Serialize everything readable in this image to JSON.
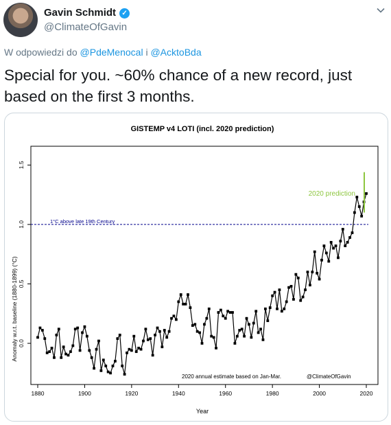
{
  "tweet": {
    "author_name": "Gavin Schmidt",
    "handle": "@ClimateOfGavin",
    "reply_prefix": "W odpowiedzi do",
    "reply_user1": "@PdeMenocal",
    "reply_joiner": "i",
    "reply_user2": "@AcktoBda",
    "text": "Special for you. ~60% chance of a new record, just based on the first 3 months.",
    "icons": [
      "avatar",
      "verified-badge-icon",
      "chevron-down-icon"
    ],
    "colors": {
      "link": "#1b95e0",
      "verified": "#1da1f2",
      "muted": "#657786"
    }
  },
  "chart_data": {
    "type": "line",
    "title": "GISTEMP v4 LOTI (incl. 2020 prediction)",
    "xlabel": "Year",
    "ylabel": "Anomaly w.r.t. baseline (1880-1899) (°C)",
    "xlim": [
      1880,
      2020
    ],
    "ylim": [
      -0.3,
      1.6
    ],
    "xticks": [
      "1880",
      "1900",
      "1920",
      "1940",
      "1960",
      "1980",
      "2000",
      "2020"
    ],
    "yticks": [
      "0.0",
      "0.5",
      "1.0",
      "1.5"
    ],
    "reference_line": {
      "y": 1.0,
      "label": "1°C above late 19th Century",
      "color": "#00008b"
    },
    "prediction": {
      "year": 2020,
      "value": 1.26,
      "low": 1.1,
      "high": 1.44,
      "label": "2020 prediction",
      "color": "#8dc63f"
    },
    "annotation_left": "2020 annual estimate based on Jan-Mar.",
    "annotation_right": "@ClimateOfGavin",
    "series": [
      {
        "x": [
          1880,
          1881,
          1882,
          1883,
          1884,
          1885,
          1886,
          1887,
          1888,
          1889,
          1890,
          1891,
          1892,
          1893,
          1894,
          1895,
          1896,
          1897,
          1898,
          1899,
          1900,
          1901,
          1902,
          1903,
          1904,
          1905,
          1906,
          1907,
          1908,
          1909,
          1910,
          1911,
          1912,
          1913,
          1914,
          1915,
          1916,
          1917,
          1918,
          1919,
          1920,
          1921,
          1922,
          1923,
          1924,
          1925,
          1926,
          1927,
          1928,
          1929,
          1930,
          1931,
          1932,
          1933,
          1934,
          1935,
          1936,
          1937,
          1938,
          1939,
          1940,
          1941,
          1942,
          1943,
          1944,
          1945,
          1946,
          1947,
          1948,
          1949,
          1950,
          1951,
          1952,
          1953,
          1954,
          1955,
          1956,
          1957,
          1958,
          1959,
          1960,
          1961,
          1962,
          1963,
          1964,
          1965,
          1966,
          1967,
          1968,
          1969,
          1970,
          1971,
          1972,
          1973,
          1974,
          1975,
          1976,
          1977,
          1978,
          1979,
          1980,
          1981,
          1982,
          1983,
          1984,
          1985,
          1986,
          1987,
          1988,
          1989,
          1990,
          1991,
          1992,
          1993,
          1994,
          1995,
          1996,
          1997,
          1998,
          1999,
          2000,
          2001,
          2002,
          2003,
          2004,
          2005,
          2006,
          2007,
          2008,
          2009,
          2010,
          2011,
          2012,
          2013,
          2014,
          2015,
          2016,
          2017,
          2018,
          2019
        ],
        "y": [
          0.05,
          0.13,
          0.11,
          0.04,
          -0.08,
          -0.07,
          -0.04,
          -0.12,
          0.07,
          0.12,
          -0.12,
          -0.03,
          -0.09,
          -0.1,
          -0.07,
          -0.02,
          0.12,
          0.13,
          -0.06,
          0.09,
          0.14,
          0.06,
          -0.06,
          -0.12,
          -0.21,
          -0.05,
          0.02,
          -0.23,
          -0.14,
          -0.19,
          -0.24,
          -0.25,
          -0.19,
          -0.15,
          0.04,
          0.07,
          -0.19,
          -0.26,
          -0.08,
          -0.05,
          -0.06,
          0.06,
          -0.07,
          -0.04,
          -0.05,
          0.02,
          0.12,
          0.03,
          0.04,
          -0.1,
          0.07,
          0.13,
          0.1,
          -0.03,
          0.11,
          0.05,
          0.1,
          0.21,
          0.23,
          0.2,
          0.35,
          0.41,
          0.33,
          0.33,
          0.41,
          0.3,
          0.15,
          0.16,
          0.1,
          0.09,
          0.0,
          0.16,
          0.21,
          0.29,
          0.06,
          0.05,
          -0.04,
          0.26,
          0.28,
          0.23,
          0.21,
          0.27,
          0.26,
          0.26,
          0.0,
          0.06,
          0.11,
          0.12,
          0.06,
          0.21,
          0.16,
          0.05,
          0.17,
          0.27,
          0.09,
          0.12,
          0.03,
          0.29,
          0.19,
          0.3,
          0.4,
          0.43,
          0.29,
          0.45,
          0.27,
          0.29,
          0.35,
          0.47,
          0.48,
          0.37,
          0.58,
          0.55,
          0.36,
          0.39,
          0.45,
          0.6,
          0.49,
          0.6,
          0.77,
          0.59,
          0.54,
          0.7,
          0.82,
          0.76,
          0.69,
          0.85,
          0.8,
          0.82,
          0.72,
          0.86,
          0.96,
          0.82,
          0.85,
          0.89,
          0.93,
          1.1,
          1.23,
          1.15,
          1.07,
          1.19
        ]
      }
    ]
  }
}
